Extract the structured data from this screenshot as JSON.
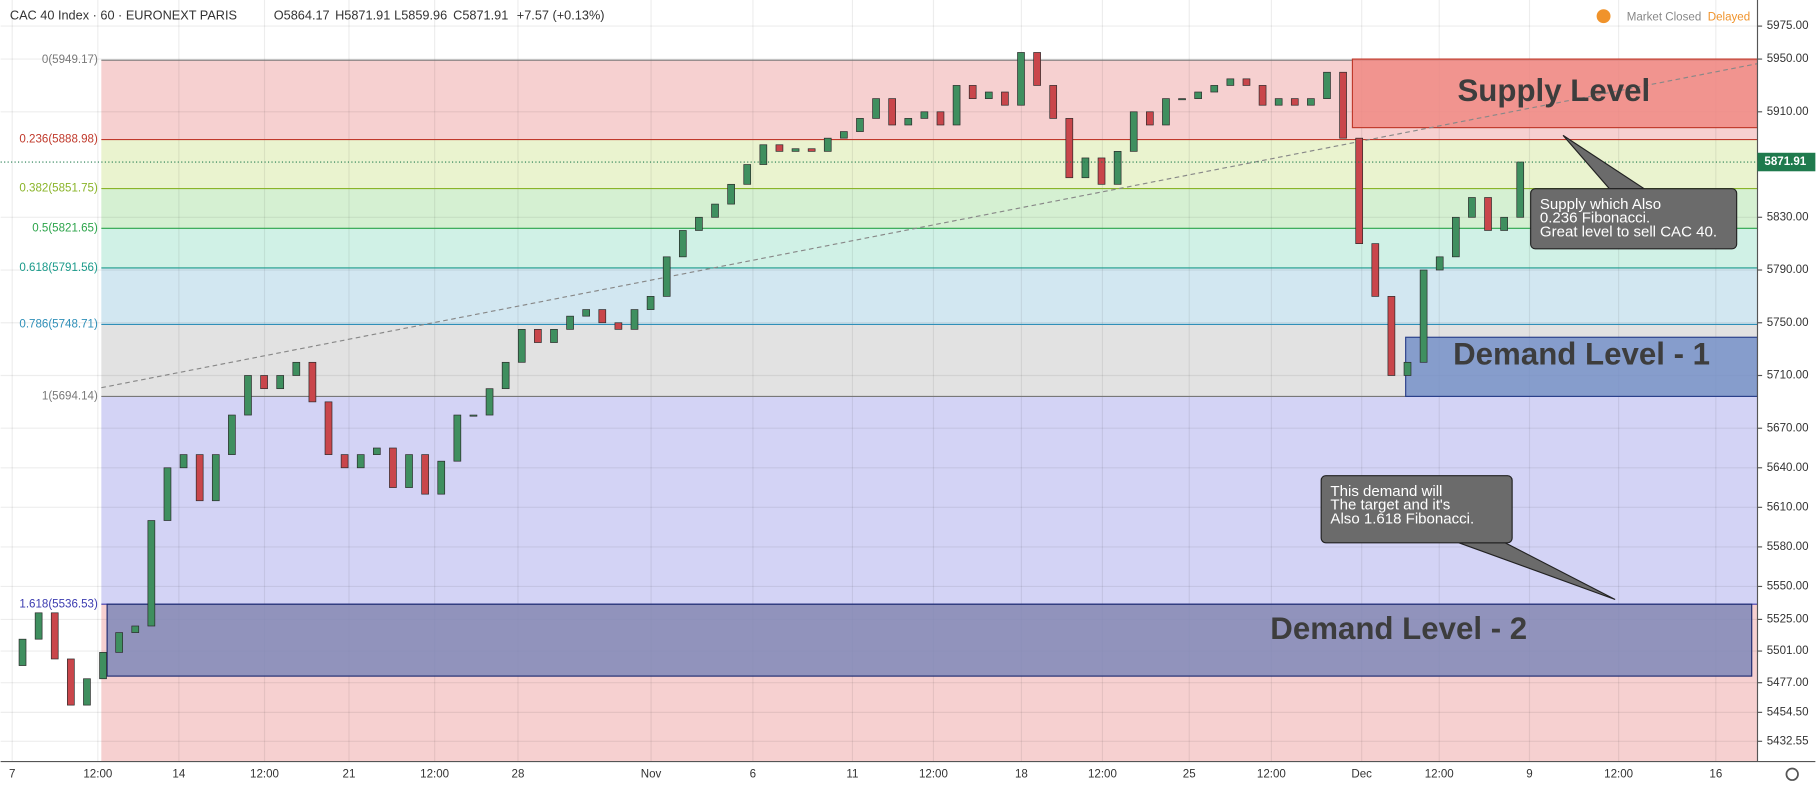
{
  "chart_data": {
    "type": "candlestick",
    "header": {
      "symbol": "CAC 40 Index · 60 · EURONEXT PARIS",
      "open": "O5864.17",
      "high": "H5871.91",
      "low": "L5859.96",
      "close": "C5871.91",
      "change": "+7.57 (+0.13%)",
      "status": "Market Closed",
      "delay": "Delayed"
    },
    "x_labels": [
      "7",
      "12:00",
      "14",
      "12:00",
      "21",
      "12:00",
      "28",
      "Nov",
      "6",
      "11",
      "12:00",
      "18",
      "12:00",
      "25",
      "12:00",
      "Dec",
      "12:00",
      "9",
      "12:00",
      "16"
    ],
    "ylim": [
      5417.2,
      5994.8
    ],
    "yticks": [
      {
        "value": 5975,
        "label": "5975.00"
      },
      {
        "value": 5950,
        "label": "5950.00"
      },
      {
        "value": 5910,
        "label": "5910.00"
      },
      {
        "value": 5830,
        "label": "5830.00"
      },
      {
        "value": 5790,
        "label": "5790.00"
      },
      {
        "value": 5750,
        "label": "5750.00"
      },
      {
        "value": 5710,
        "label": "5710.00"
      },
      {
        "value": 5670,
        "label": "5670.00"
      },
      {
        "value": 5640,
        "label": "5640.00"
      },
      {
        "value": 5610,
        "label": "5610.00"
      },
      {
        "value": 5580,
        "label": "5580.00"
      },
      {
        "value": 5550,
        "label": "5550.00"
      },
      {
        "value": 5525,
        "label": "5525.00"
      },
      {
        "value": 5501,
        "label": "5501.00"
      },
      {
        "value": 5477,
        "label": "5477.00"
      },
      {
        "value": 5454.5,
        "label": "5454.50"
      },
      {
        "value": 5432.55,
        "label": "5432.55"
      }
    ],
    "last_price": {
      "value": 5871.91,
      "label": "5871.91",
      "color": "#1f7a4d"
    },
    "up_color": "#3f8f5f",
    "down_color": "#c9464b",
    "fib_levels": [
      {
        "value": 5949.17,
        "label": "0(5949.17)",
        "color": "#787878",
        "band": "#f6d0d0"
      },
      {
        "value": 5888.98,
        "label": "0.236(5888.98)",
        "color": "#c0392b",
        "band": "#eaf3cf"
      },
      {
        "value": 5851.75,
        "label": "0.382(5851.75)",
        "color": "#8ab429",
        "band": "#d5f0d2"
      },
      {
        "value": 5821.65,
        "label": "0.5(5821.65)",
        "color": "#2ca44a",
        "band": "#d0f1e6"
      },
      {
        "value": 5791.56,
        "label": "0.618(5791.56)",
        "color": "#1a9a8a",
        "band": "#d2e7f1"
      },
      {
        "value": 5748.71,
        "label": "0.786(5748.71)",
        "color": "#2f8fb8",
        "band": "#e2e2e2"
      },
      {
        "value": 5694.14,
        "label": "1(5694.14)",
        "color": "#787878",
        "band": "#d3d3f5"
      },
      {
        "value": 5536.53,
        "label": "1.618(5536.53)",
        "color": "#3b3bb0",
        "band": "#f6d0d0"
      }
    ],
    "zones": [
      {
        "label": "Supply Level",
        "top": 5950,
        "bottom": 5898,
        "fill": "#f08a84",
        "stroke": "#c0392b"
      },
      {
        "label": "Demand Level - 1",
        "top": 5739,
        "bottom": 5694.14,
        "fill": "#7590c8",
        "stroke": "#2a3f8a"
      },
      {
        "label": "Demand Level - 2",
        "top": 5536.53,
        "bottom": 5482,
        "fill": "#7f88b8",
        "stroke": "#1d2a70"
      }
    ],
    "annotations": [
      [
        "Supply which Also",
        "0.236 Fibonacci.",
        "Great level to sell CAC 40."
      ],
      [
        "This demand will",
        "The target and it's",
        "Also 1.618 Fibonacci."
      ]
    ],
    "closes": [
      5490,
      5510,
      5530,
      5495,
      5460,
      5480,
      5500,
      5515,
      5520,
      5600,
      5640,
      5650,
      5615,
      5650,
      5680,
      5710,
      5700,
      5710,
      5720,
      5690,
      5650,
      5640,
      5650,
      5655,
      5625,
      5650,
      5620,
      5645,
      5680,
      5680,
      5700,
      5720,
      5745,
      5735,
      5745,
      5755,
      5760,
      5750,
      5745,
      5760,
      5770,
      5800,
      5820,
      5830,
      5840,
      5855,
      5870,
      5885,
      5880,
      5882,
      5880,
      5890,
      5895,
      5905,
      5920,
      5900,
      5905,
      5910,
      5900,
      5930,
      5920,
      5925,
      5915,
      5955,
      5930,
      5905,
      5860,
      5875,
      5855,
      5880,
      5910,
      5900,
      5920,
      5920,
      5925,
      5930,
      5935,
      5930,
      5915,
      5920,
      5915,
      5920,
      5940,
      5890,
      5810,
      5770,
      5710,
      5720,
      5790,
      5800,
      5830,
      5845,
      5820,
      5830,
      5871.91
    ]
  }
}
